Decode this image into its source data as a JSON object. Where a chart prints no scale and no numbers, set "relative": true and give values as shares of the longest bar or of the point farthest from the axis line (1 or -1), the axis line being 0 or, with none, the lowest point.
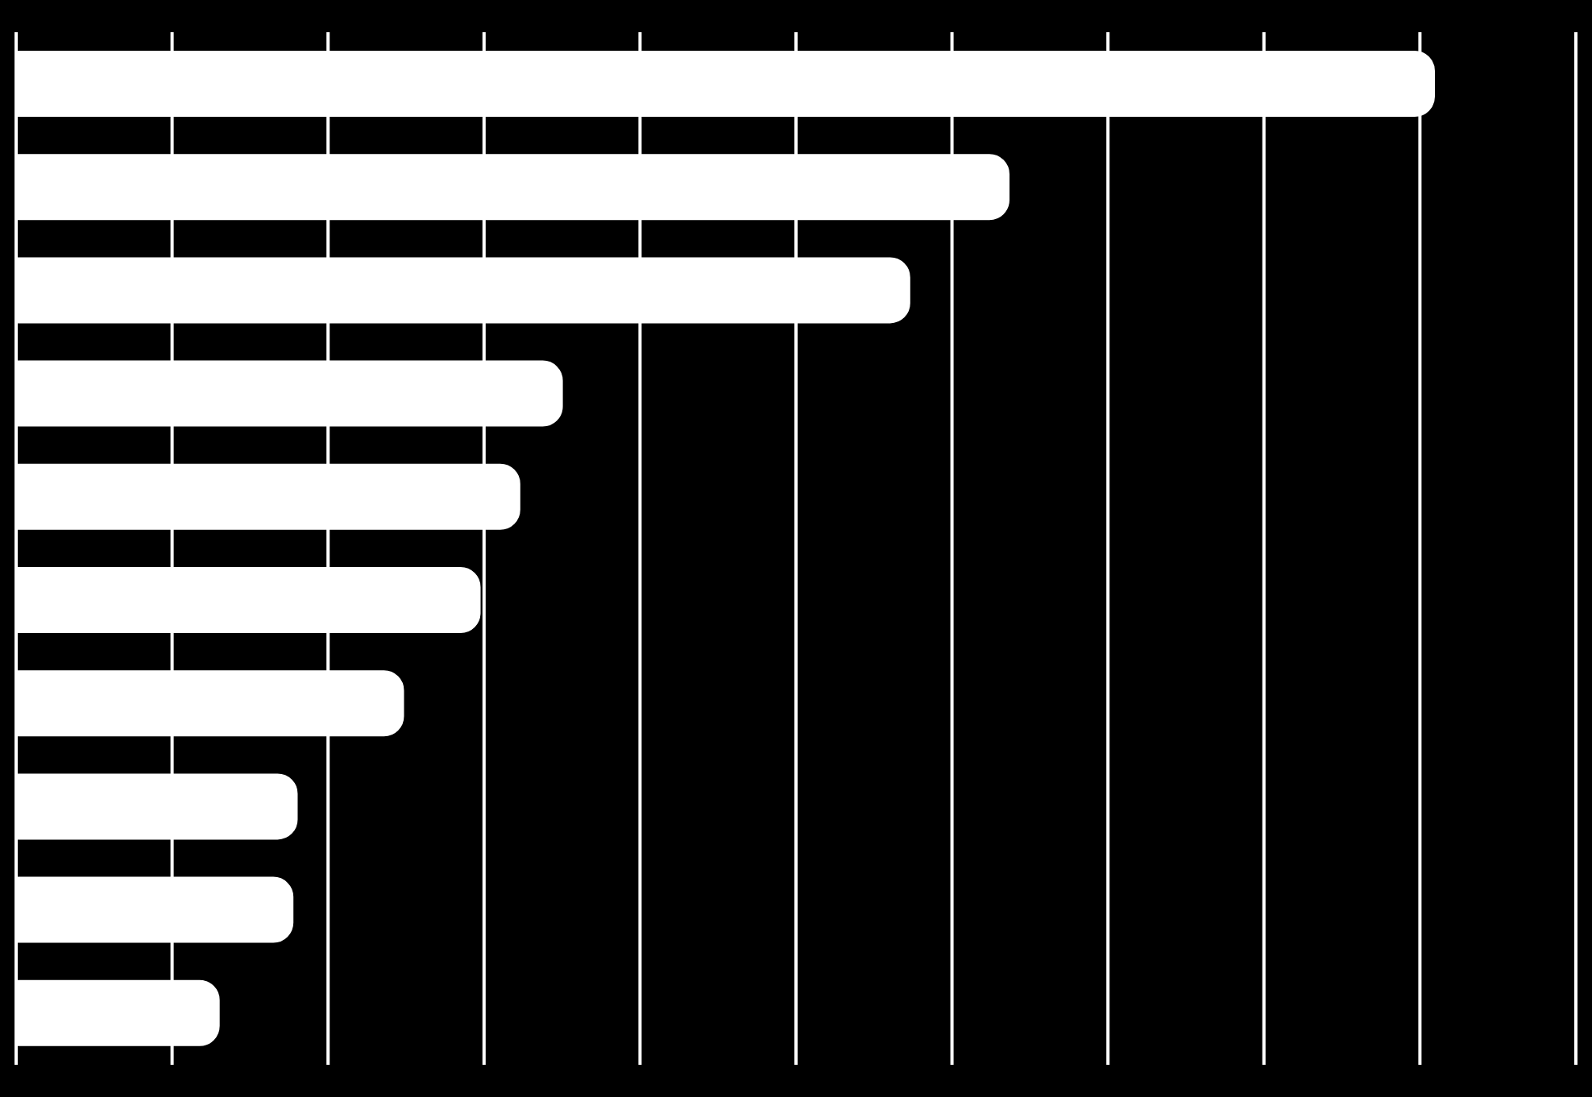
{
  "chart_data": {
    "type": "bar",
    "orientation": "horizontal",
    "relative": true,
    "categories": [
      null,
      null,
      null,
      null,
      null,
      null,
      null,
      null,
      null,
      null
    ],
    "values": [
      1,
      0.7,
      0.63,
      0.385,
      0.355,
      0.327,
      0.273,
      0.198,
      0.195,
      0.143
    ],
    "color": "#ffffff",
    "grid": "x"
  }
}
